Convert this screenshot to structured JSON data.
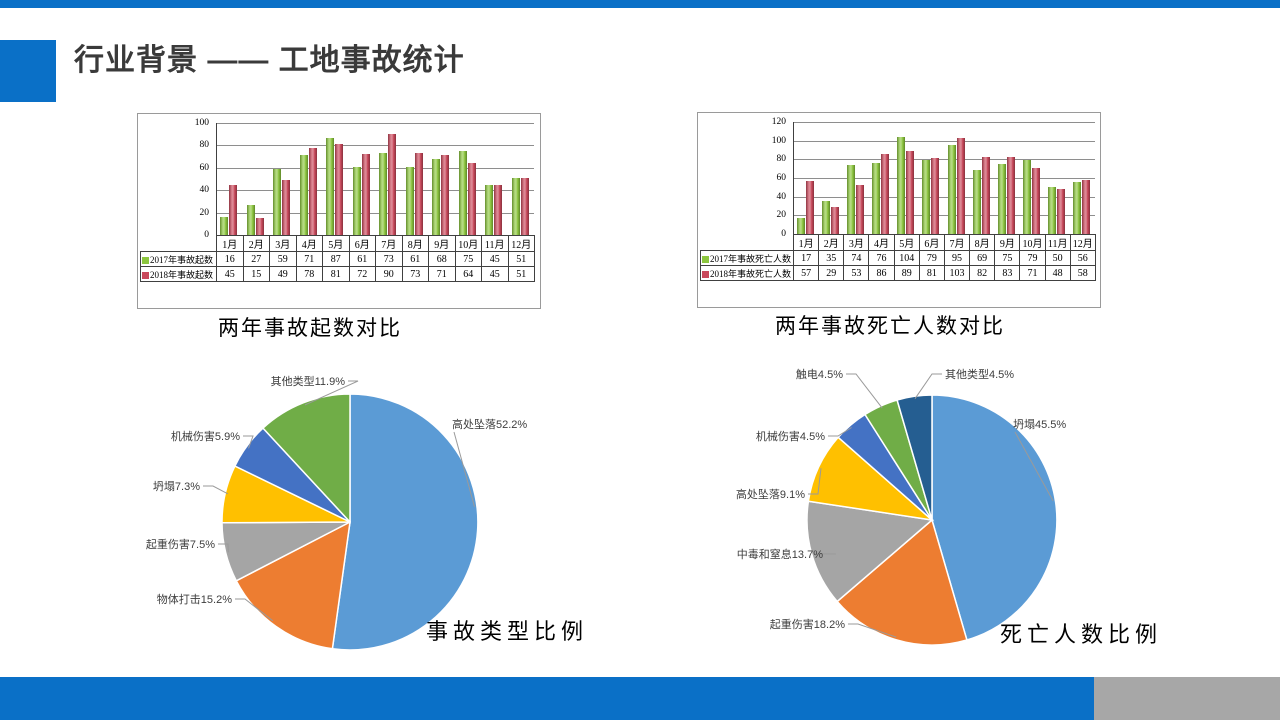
{
  "slide": {
    "title": "行业背景 —— 工地事故统计",
    "accent_color": "#0a70c7",
    "footer": {
      "bar_color": "#0a70c7",
      "block_color": "#a7a7a7"
    }
  },
  "chart_data": [
    {
      "type": "bar",
      "caption": "两年事故起数对比",
      "categories": [
        "1月",
        "2月",
        "3月",
        "4月",
        "5月",
        "6月",
        "7月",
        "8月",
        "9月",
        "10月",
        "11月",
        "12月"
      ],
      "series": [
        {
          "name": "2017年事故起数",
          "color": "#8cc63e",
          "values": [
            16,
            27,
            59,
            71,
            87,
            61,
            73,
            61,
            68,
            75,
            45,
            51
          ]
        },
        {
          "name": "2018年事故起数",
          "color": "#c9485b",
          "values": [
            45,
            15,
            49,
            78,
            81,
            72,
            90,
            73,
            71,
            64,
            45,
            51
          ]
        }
      ],
      "ylim": [
        0,
        100
      ],
      "ystep": 20,
      "grid": true,
      "show_table": true,
      "legend_position": "table-left"
    },
    {
      "type": "bar",
      "caption": "两年事故死亡人数对比",
      "categories": [
        "1月",
        "2月",
        "3月",
        "4月",
        "5月",
        "6月",
        "7月",
        "8月",
        "9月",
        "10月",
        "11月",
        "12月"
      ],
      "series": [
        {
          "name": "2017年事故死亡人数",
          "color": "#8cc63e",
          "values": [
            17,
            35,
            74,
            76,
            104,
            79,
            95,
            69,
            75,
            79,
            50,
            56
          ]
        },
        {
          "name": "2018年事故死亡人数",
          "color": "#c9485b",
          "values": [
            57,
            29,
            53,
            86,
            89,
            81,
            103,
            82,
            83,
            71,
            48,
            58
          ]
        }
      ],
      "ylim": [
        0,
        120
      ],
      "ystep": 20,
      "grid": true,
      "show_table": true,
      "legend_position": "table-left"
    },
    {
      "type": "pie",
      "caption": "事故类型比例",
      "slices": [
        {
          "label": "高处坠落",
          "pct": 52.2,
          "color": "#5b9bd5"
        },
        {
          "label": "物体打击",
          "pct": 15.2,
          "color": "#ed7d31"
        },
        {
          "label": "起重伤害",
          "pct": 7.5,
          "color": "#a5a5a5"
        },
        {
          "label": "坍塌",
          "pct": 7.3,
          "color": "#ffc000"
        },
        {
          "label": "机械伤害",
          "pct": 5.9,
          "color": "#4472c4"
        },
        {
          "label": "其他类型",
          "pct": 11.9,
          "color": "#70ad47"
        }
      ]
    },
    {
      "type": "pie",
      "caption": "死亡人数比例",
      "slices": [
        {
          "label": "坍塌",
          "pct": 45.5,
          "color": "#5b9bd5"
        },
        {
          "label": "起重伤害",
          "pct": 18.2,
          "color": "#ed7d31"
        },
        {
          "label": "中毒和窒息",
          "pct": 13.7,
          "color": "#a5a5a5"
        },
        {
          "label": "高处坠落",
          "pct": 9.1,
          "color": "#ffc000"
        },
        {
          "label": "机械伤害",
          "pct": 4.5,
          "color": "#4472c4"
        },
        {
          "label": "触电",
          "pct": 4.5,
          "color": "#70ad47"
        },
        {
          "label": "其他类型",
          "pct": 4.5,
          "color": "#255e91"
        }
      ]
    }
  ]
}
